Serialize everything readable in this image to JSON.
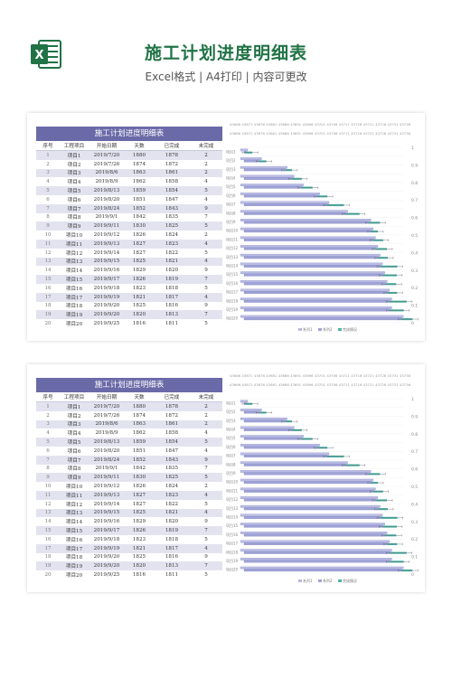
{
  "header": {
    "logo_letter": "X",
    "title": "施工计划进度明细表",
    "subtitle": "Excel格式 | A4打印 | 内容可更改",
    "brand_color": "#217346"
  },
  "table": {
    "title": "施工计划进度明细表",
    "columns": [
      "序号",
      "工程项目",
      "开始日期",
      "天数",
      "已完成",
      "未完成"
    ],
    "rows": [
      [
        "1",
        "项目1",
        "2019/7/20",
        "1880",
        "1878",
        "2"
      ],
      [
        "2",
        "项目2",
        "2019/7/26",
        "1874",
        "1872",
        "2"
      ],
      [
        "3",
        "项目3",
        "2019/8/6",
        "1863",
        "1861",
        "2"
      ],
      [
        "4",
        "项目4",
        "2019/8/9",
        "1862",
        "1858",
        "4"
      ],
      [
        "5",
        "项目5",
        "2019/8/13",
        "1859",
        "1854",
        "5"
      ],
      [
        "6",
        "项目6",
        "2019/8/20",
        "1851",
        "1847",
        "4"
      ],
      [
        "7",
        "项目7",
        "2019/8/24",
        "1852",
        "1843",
        "9"
      ],
      [
        "8",
        "项目8",
        "2019/9/1",
        "1842",
        "1835",
        "7"
      ],
      [
        "9",
        "项目9",
        "2019/9/11",
        "1830",
        "1825",
        "5"
      ],
      [
        "10",
        "项目10",
        "2019/9/12",
        "1826",
        "1824",
        "2"
      ],
      [
        "11",
        "项目11",
        "2019/9/13",
        "1827",
        "1823",
        "4"
      ],
      [
        "12",
        "项目12",
        "2019/9/14",
        "1827",
        "1822",
        "5"
      ],
      [
        "13",
        "项目13",
        "2019/9/15",
        "1825",
        "1821",
        "4"
      ],
      [
        "14",
        "项目14",
        "2019/9/16",
        "1829",
        "1820",
        "9"
      ],
      [
        "15",
        "项目15",
        "2019/9/17",
        "1826",
        "1819",
        "7"
      ],
      [
        "16",
        "项目16",
        "2019/9/18",
        "1823",
        "1818",
        "5"
      ],
      [
        "17",
        "项目17",
        "2019/9/19",
        "1821",
        "1817",
        "4"
      ],
      [
        "18",
        "项目18",
        "2019/9/20",
        "1825",
        "1816",
        "9"
      ],
      [
        "19",
        "项目19",
        "2019/9/20",
        "1820",
        "1813",
        "7"
      ],
      [
        "20",
        "项目20",
        "2019/9/25",
        "1816",
        "1811",
        "5"
      ]
    ]
  },
  "chart_data": {
    "type": "bar",
    "top_axis_ticks": [
      "43666",
      "43671",
      "43676",
      "43681",
      "43686",
      "43691",
      "43696",
      "43701",
      "43706",
      "43711",
      "43716",
      "43721",
      "43726",
      "43731",
      "43736"
    ],
    "right_axis_ticks": [
      "1",
      "0.9",
      "0.8",
      "0.7",
      "0.6",
      "0.5",
      "0.4",
      "0.3",
      "0.2",
      "0.1",
      "0"
    ],
    "categories": [
      "项目1",
      "项目2",
      "项目3",
      "项目4",
      "项目5",
      "项目6",
      "项目7",
      "项目8",
      "项目9",
      "项目10",
      "项目11",
      "项目12",
      "项目13",
      "项目14",
      "项目15",
      "项目16",
      "项目17",
      "项目18",
      "项目19",
      "项目20"
    ],
    "series": [
      {
        "name": "系列1",
        "color": "#b9bbe3",
        "values": [
          43666,
          43672,
          43683,
          43686,
          43690,
          43697,
          43701,
          43709,
          43719,
          43720,
          43721,
          43722,
          43723,
          43724,
          43725,
          43726,
          43727,
          43728,
          43728,
          43733
        ]
      },
      {
        "name": "系列2",
        "color": "#9fa3d6",
        "values": [
          1878,
          1872,
          1861,
          1858,
          1854,
          1847,
          1843,
          1835,
          1825,
          1824,
          1823,
          1822,
          1821,
          1820,
          1819,
          1818,
          1817,
          1816,
          1813,
          1811
        ]
      },
      {
        "name": "完成情况",
        "color": "#4fb3a9",
        "values": [
          2,
          2,
          2,
          4,
          5,
          4,
          9,
          7,
          5,
          2,
          4,
          5,
          4,
          9,
          7,
          5,
          4,
          9,
          7,
          5
        ]
      }
    ],
    "legend": [
      "系列1",
      "系列2",
      "完成情况"
    ],
    "legend_position": "bottom"
  }
}
